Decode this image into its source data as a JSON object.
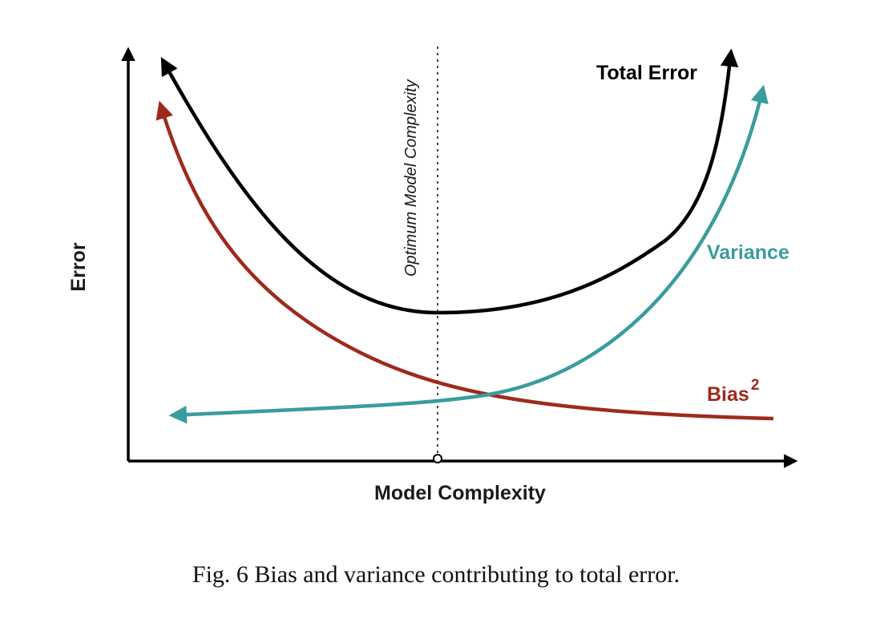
{
  "figure": {
    "y_axis_label": "Error",
    "x_axis_label": "Model Complexity",
    "optimum_label": "Optimum Model Complexity",
    "curves": {
      "total": {
        "label": "Total Error",
        "color": "#000000"
      },
      "variance": {
        "label": "Variance",
        "color": "#3a9c9c"
      },
      "bias": {
        "label": "Bias",
        "superscript": "2",
        "color": "#9e2a1c"
      }
    }
  },
  "caption": "Fig. 6 Bias and variance contributing to total error."
}
